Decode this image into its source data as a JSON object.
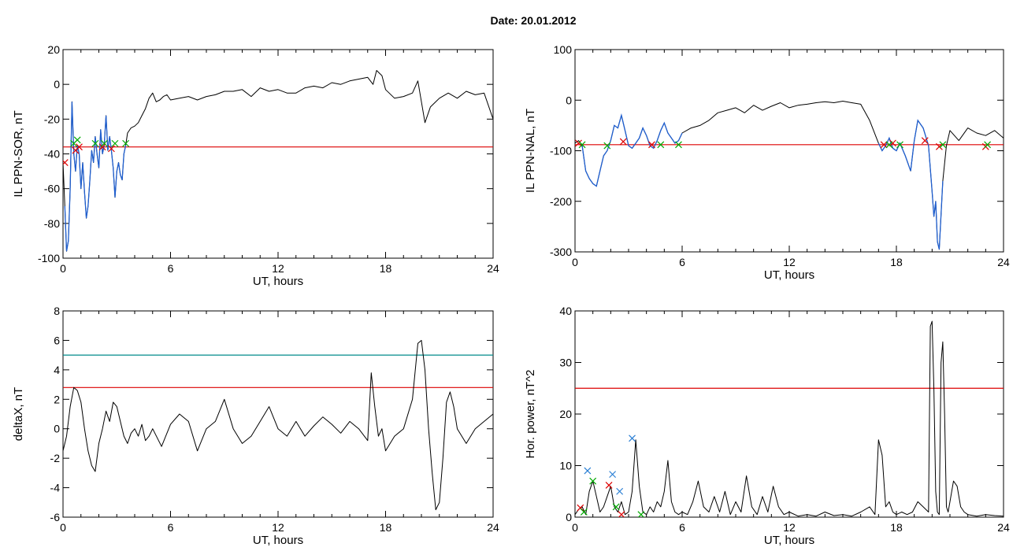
{
  "header": {
    "date_label": "Date:  20.01.2012"
  },
  "colors": {
    "trace": "#000000",
    "highlight": "#1f5fd0",
    "threshold": "#dd0000",
    "threshold2": "#008b8b",
    "marker_red": "#dd0000",
    "marker_green": "#00aa00",
    "marker_blue": "#2a7fd4"
  },
  "chart_data": [
    {
      "type": "line",
      "title": "",
      "xlabel": "UT, hours",
      "ylabel": "IL PPN-SOR, nT",
      "xlim": [
        0,
        24
      ],
      "ylim": [
        -100,
        20
      ],
      "xticks": [
        0,
        6,
        12,
        18,
        24
      ],
      "yticks": [
        -100,
        -80,
        -60,
        -40,
        -20,
        0,
        20
      ],
      "threshold": -36,
      "series": [
        {
          "x": [
            0,
            0.1,
            0.2,
            0.3,
            0.4,
            0.5,
            0.6,
            0.7,
            0.8,
            0.9,
            1.0,
            1.1,
            1.2,
            1.3,
            1.4,
            1.5,
            1.6,
            1.7,
            1.8,
            1.9,
            2.0,
            2.1,
            2.2,
            2.3,
            2.4,
            2.5,
            2.6,
            2.7,
            2.8,
            2.9,
            3.0,
            3.1,
            3.2,
            3.3,
            3.4,
            3.5,
            3.6,
            3.8,
            4.0,
            4.2,
            4.4,
            4.6,
            4.8,
            5.0,
            5.2,
            5.4,
            5.6,
            5.8,
            6,
            6.5,
            7,
            7.5,
            8,
            8.5,
            9,
            9.5,
            10,
            10.5,
            11,
            11.5,
            12,
            12.5,
            13,
            13.5,
            14,
            14.5,
            15,
            15.5,
            16,
            16.5,
            17,
            17.3,
            17.5,
            17.8,
            18,
            18.5,
            19,
            19.5,
            19.8,
            20,
            20.2,
            20.5,
            21,
            21.5,
            22,
            22.5,
            23,
            23.5,
            24
          ],
          "y": [
            -45,
            -70,
            -96,
            -90,
            -60,
            -10,
            -40,
            -50,
            -35,
            -40,
            -60,
            -45,
            -62,
            -77,
            -70,
            -55,
            -38,
            -45,
            -30,
            -40,
            -48,
            -26,
            -40,
            -35,
            -18,
            -38,
            -30,
            -38,
            -48,
            -65,
            -50,
            -45,
            -52,
            -55,
            -40,
            -35,
            -28,
            -25,
            -24,
            -22,
            -18,
            -14,
            -8,
            -5,
            -10,
            -9,
            -7,
            -6,
            -9,
            -8,
            -7,
            -9,
            -7,
            -6,
            -4,
            -4,
            -3,
            -7,
            -2,
            -4,
            -3,
            -5,
            -5,
            -2,
            -1,
            -2,
            1,
            0,
            2,
            3,
            4,
            0,
            8,
            5,
            -3,
            -8,
            -7,
            -5,
            2,
            -10,
            -22,
            -13,
            -8,
            -5,
            -8,
            -4,
            -6,
            -5,
            -20
          ]
        }
      ],
      "highlight_ranges": [
        [
          0.1,
          3.5
        ]
      ],
      "markers": [
        {
          "color": "red",
          "x": [
            0.1,
            0.7,
            0.9,
            2.2,
            2.7
          ],
          "y": [
            -45,
            -38,
            -36,
            -36,
            -37
          ]
        },
        {
          "color": "green",
          "x": [
            0.6,
            0.8,
            1.8,
            2.3,
            2.9,
            3.5
          ],
          "y": [
            -34,
            -32,
            -34,
            -34,
            -34,
            -34
          ]
        }
      ]
    },
    {
      "type": "line",
      "title": "",
      "xlabel": "UT, hours",
      "ylabel": "IL PPN-NAL, nT",
      "xlim": [
        0,
        24
      ],
      "ylim": [
        -300,
        100
      ],
      "xticks": [
        0,
        6,
        12,
        18,
        24
      ],
      "yticks": [
        -300,
        -200,
        -100,
        0,
        100
      ],
      "threshold": -88,
      "series": [
        {
          "x": [
            0,
            0.2,
            0.4,
            0.6,
            0.8,
            1.0,
            1.2,
            1.4,
            1.6,
            1.8,
            2.0,
            2.2,
            2.4,
            2.6,
            2.8,
            3.0,
            3.2,
            3.4,
            3.6,
            3.8,
            4.0,
            4.2,
            4.4,
            4.6,
            4.8,
            5.0,
            5.2,
            5.4,
            5.6,
            5.8,
            6,
            6.5,
            7,
            7.5,
            8,
            8.5,
            9,
            9.5,
            10,
            10.5,
            11,
            11.5,
            12,
            12.5,
            13,
            13.5,
            14,
            14.5,
            15,
            15.5,
            16,
            16.5,
            17,
            17.2,
            17.4,
            17.6,
            17.8,
            18,
            18.2,
            18.5,
            18.8,
            19,
            19.2,
            19.5,
            19.8,
            20,
            20.1,
            20.2,
            20.3,
            20.4,
            20.6,
            20.8,
            21,
            21.5,
            22,
            22.5,
            23,
            23.5,
            24
          ],
          "y": [
            -85,
            -80,
            -90,
            -140,
            -155,
            -165,
            -170,
            -140,
            -110,
            -100,
            -80,
            -50,
            -55,
            -30,
            -60,
            -90,
            -95,
            -85,
            -75,
            -55,
            -70,
            -90,
            -95,
            -80,
            -60,
            -45,
            -65,
            -75,
            -85,
            -80,
            -65,
            -55,
            -50,
            -40,
            -25,
            -20,
            -15,
            -25,
            -10,
            -20,
            -12,
            -5,
            -15,
            -10,
            -8,
            -5,
            -3,
            -5,
            -2,
            -5,
            -8,
            -40,
            -85,
            -100,
            -90,
            -75,
            -95,
            -100,
            -85,
            -110,
            -140,
            -80,
            -40,
            -55,
            -90,
            -180,
            -230,
            -200,
            -280,
            -295,
            -160,
            -90,
            -60,
            -80,
            -55,
            -65,
            -70,
            -60,
            -75
          ]
        }
      ],
      "highlight_ranges": [
        [
          0.3,
          6.0
        ],
        [
          17.0,
          20.7
        ],
        [
          22.8,
          23.3
        ]
      ],
      "markers": [
        {
          "color": "red",
          "x": [
            0.2,
            2.7,
            4.3,
            17.3,
            17.8,
            19.6,
            20.4,
            23
          ],
          "y": [
            -85,
            -82,
            -88,
            -88,
            -85,
            -80,
            -92,
            -92
          ]
        },
        {
          "color": "green",
          "x": [
            0.4,
            1.8,
            4.8,
            5.8,
            17.6,
            18.2,
            20.6,
            23.1
          ],
          "y": [
            -88,
            -90,
            -88,
            -88,
            -88,
            -88,
            -88,
            -88
          ]
        }
      ]
    },
    {
      "type": "line",
      "title": "",
      "xlabel": "UT, hours",
      "ylabel": "deltaX, nT",
      "xlim": [
        0,
        24
      ],
      "ylim": [
        -6,
        8
      ],
      "xticks": [
        0,
        6,
        12,
        18,
        24
      ],
      "yticks": [
        -6,
        -4,
        -2,
        0,
        2,
        4,
        6,
        8
      ],
      "threshold": 2.8,
      "threshold2": 5.0,
      "series": [
        {
          "x": [
            0,
            0.2,
            0.4,
            0.6,
            0.8,
            1.0,
            1.2,
            1.4,
            1.6,
            1.8,
            2.0,
            2.2,
            2.4,
            2.6,
            2.8,
            3.0,
            3.2,
            3.4,
            3.6,
            3.8,
            4.0,
            4.2,
            4.4,
            4.6,
            4.8,
            5.0,
            5.5,
            6,
            6.5,
            7,
            7.5,
            8,
            8.5,
            9,
            9.5,
            10,
            10.5,
            11,
            11.5,
            12,
            12.5,
            13,
            13.5,
            14,
            14.5,
            15,
            15.5,
            16,
            16.5,
            17,
            17.2,
            17.4,
            17.6,
            17.8,
            18,
            18.5,
            19,
            19.5,
            19.8,
            20,
            20.2,
            20.4,
            20.6,
            20.8,
            21,
            21.2,
            21.4,
            21.6,
            21.8,
            22,
            22.5,
            23,
            23.5,
            24
          ],
          "y": [
            -1.5,
            -0.5,
            1.5,
            2.8,
            2.6,
            1.8,
            0,
            -1.5,
            -2.5,
            -2.9,
            -1,
            0,
            1.2,
            0.5,
            1.8,
            1.5,
            0.5,
            -0.5,
            -1,
            -0.3,
            0,
            -0.5,
            0.3,
            -0.8,
            -0.5,
            0,
            -1.2,
            0.3,
            1,
            0.5,
            -1.5,
            0,
            0.5,
            2,
            0,
            -1,
            -0.5,
            0.5,
            1.5,
            0,
            -0.5,
            0.5,
            -0.5,
            0.2,
            0.8,
            0.3,
            -0.3,
            0.5,
            0,
            -0.8,
            3.8,
            1.5,
            -0.5,
            0,
            -1.5,
            -0.5,
            0,
            2,
            5.8,
            6,
            4,
            0,
            -3,
            -5.5,
            -5,
            -2,
            1.8,
            2.5,
            1.5,
            0,
            -1,
            0,
            0.5,
            1
          ]
        }
      ],
      "highlight_ranges": [],
      "markers": []
    },
    {
      "type": "line",
      "title": "",
      "xlabel": "UT, hours",
      "ylabel": "Hor. power, nT^2",
      "xlim": [
        0,
        24
      ],
      "ylim": [
        0,
        40
      ],
      "xticks": [
        0,
        6,
        12,
        18,
        24
      ],
      "yticks": [
        0,
        10,
        20,
        30,
        40
      ],
      "threshold": 25,
      "series": [
        {
          "x": [
            0,
            0.2,
            0.4,
            0.6,
            0.8,
            1.0,
            1.2,
            1.4,
            1.6,
            1.8,
            2.0,
            2.2,
            2.4,
            2.6,
            2.8,
            3.0,
            3.2,
            3.4,
            3.6,
            3.8,
            4.0,
            4.2,
            4.4,
            4.6,
            4.8,
            5.0,
            5.2,
            5.4,
            5.6,
            5.8,
            6,
            6.3,
            6.6,
            6.9,
            7.2,
            7.5,
            7.8,
            8.1,
            8.4,
            8.7,
            9,
            9.3,
            9.6,
            9.9,
            10.2,
            10.5,
            10.8,
            11.1,
            11.4,
            11.7,
            12,
            12.5,
            13,
            13.5,
            14,
            14.5,
            15,
            15.5,
            16,
            16.5,
            16.8,
            17,
            17.2,
            17.4,
            17.6,
            17.8,
            18,
            18.3,
            18.6,
            18.9,
            19.2,
            19.5,
            19.8,
            19.9,
            20,
            20.1,
            20.2,
            20.3,
            20.4,
            20.5,
            20.6,
            20.7,
            20.8,
            20.9,
            21,
            21.2,
            21.4,
            21.6,
            21.8,
            22,
            22.5,
            23,
            23.5,
            24
          ],
          "y": [
            0.5,
            1.5,
            2,
            0.5,
            5,
            7,
            4,
            1,
            2,
            4,
            6,
            2,
            1,
            3,
            0.5,
            1,
            5,
            15,
            6,
            1,
            0.5,
            2,
            1,
            3,
            2,
            5,
            11,
            3,
            1,
            0.5,
            1,
            0.5,
            3,
            7,
            2,
            1,
            4,
            1,
            5,
            0.5,
            3,
            1,
            8,
            2,
            0.5,
            4,
            1,
            6,
            2,
            0.5,
            1,
            0.2,
            0.5,
            0.2,
            1,
            0.3,
            0.5,
            0.2,
            1,
            2,
            0.5,
            15,
            12,
            2,
            3,
            1,
            0.5,
            1,
            0.5,
            1,
            3,
            2,
            1,
            37,
            38,
            25,
            5,
            1,
            0.5,
            30,
            34,
            20,
            2,
            1,
            3,
            7,
            6,
            2,
            1,
            0.5,
            0.2,
            0.5,
            0.3,
            0.2
          ]
        }
      ],
      "highlight_ranges": [],
      "markers": [
        {
          "color": "blue",
          "x": [
            0.7,
            2.1,
            2.5,
            3.2
          ],
          "y": [
            9,
            8.3,
            5,
            15.3
          ]
        },
        {
          "color": "red",
          "x": [
            0.3,
            1.9,
            2.6
          ],
          "y": [
            1.8,
            6.2,
            0.5
          ]
        },
        {
          "color": "green",
          "x": [
            0.5,
            1.0,
            2.3,
            3.7
          ],
          "y": [
            1,
            7,
            2,
            0.5
          ]
        }
      ]
    }
  ]
}
